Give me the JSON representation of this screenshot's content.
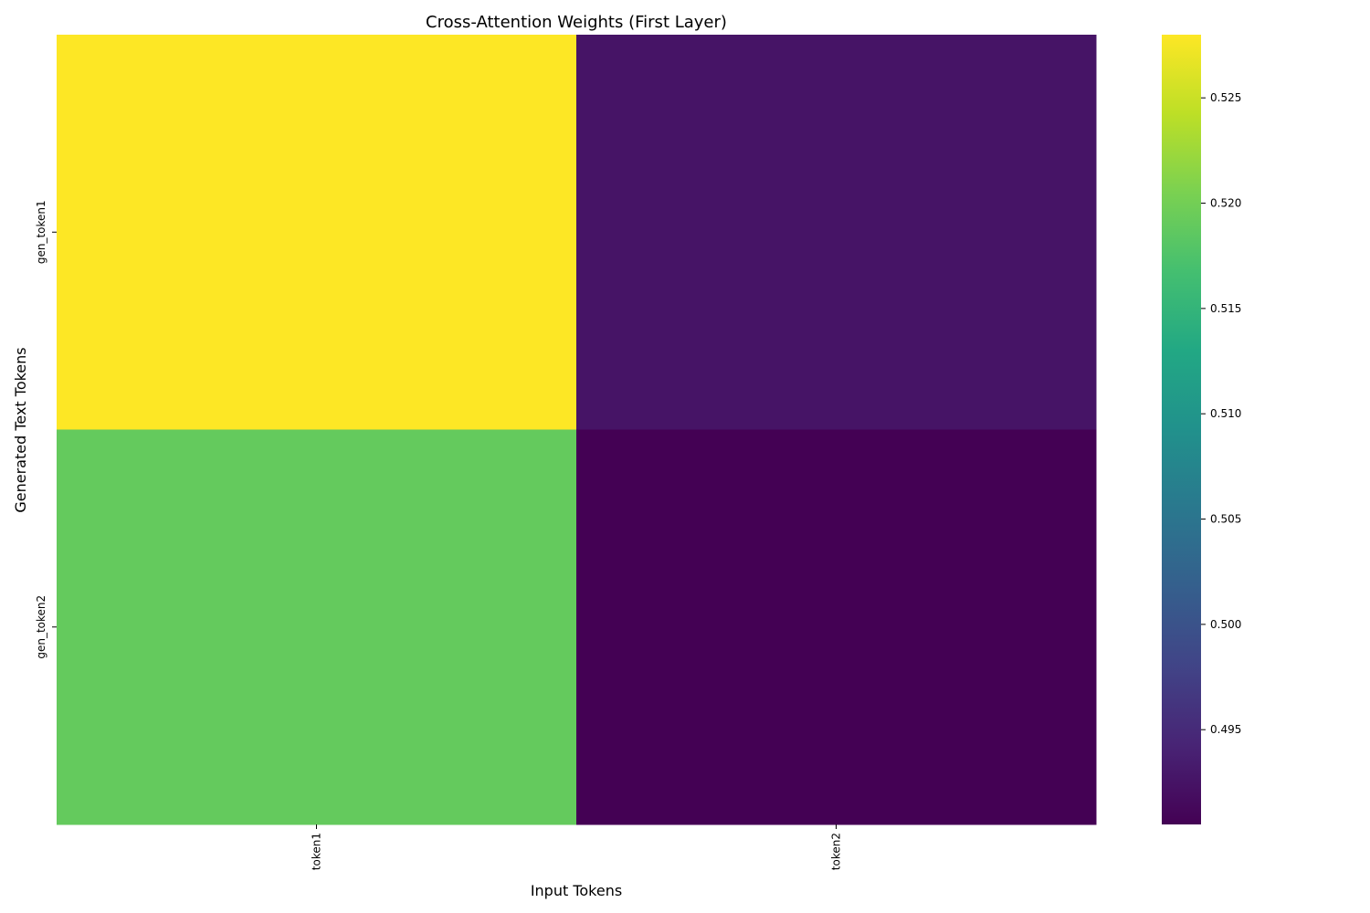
{
  "chart_data": {
    "type": "heatmap",
    "title": "Cross-Attention Weights (First Layer)",
    "xlabel": "Input Tokens",
    "ylabel": "Generated Text Tokens",
    "x_categories": [
      "token1",
      "token2"
    ],
    "y_categories": [
      "gen_token1",
      "gen_token2"
    ],
    "values": [
      [
        0.528,
        0.4925
      ],
      [
        0.519,
        0.4905
      ]
    ],
    "colormap": "viridis",
    "colorbar": {
      "min": 0.4905,
      "max": 0.528,
      "ticks": [
        0.495,
        0.5,
        0.505,
        0.51,
        0.515,
        0.52,
        0.525
      ],
      "tick_labels": [
        "0.495",
        "0.500",
        "0.505",
        "0.510",
        "0.515",
        "0.520",
        "0.525"
      ]
    },
    "grid": false,
    "legend": "colorbar-right"
  }
}
